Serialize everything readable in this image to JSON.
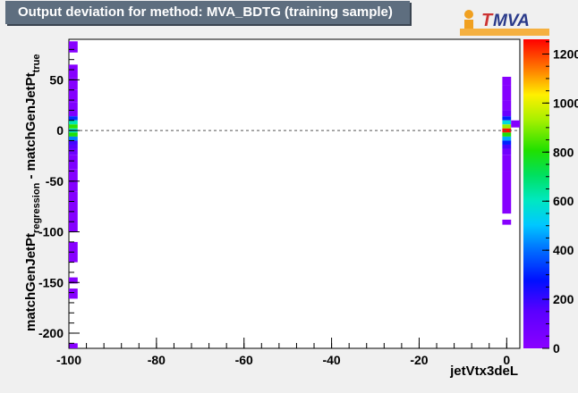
{
  "header": {
    "title": "Output deviation for method: MVA_BDTG (training sample)"
  },
  "logo": {
    "text_t": "T",
    "text_mva": "MVA",
    "accent_color": "#cc3333",
    "brand_color": "#2a3a8a",
    "dot_color": "#f0a020"
  },
  "chart_data": {
    "type": "heatmap",
    "title": "Output deviation for method: MVA_BDTG (training sample)",
    "xlabel": "jetVtx3deL",
    "ylabel_main": "matchGenJetPt",
    "ylabel_sub1": "regression",
    "ylabel_mid": " - matchGenJetPt",
    "ylabel_sub2": "true",
    "xlim": [
      -100,
      3
    ],
    "ylim": [
      -215,
      90
    ],
    "zlim": [
      0,
      1260
    ],
    "x_ticks": [
      -100,
      -80,
      -60,
      -40,
      -20,
      0
    ],
    "y_ticks": [
      50,
      0,
      -50,
      -100,
      -150,
      -200
    ],
    "z_ticks": [
      0,
      200,
      400,
      600,
      800,
      1000,
      1200
    ],
    "reference_line_y": 0,
    "cells": [
      {
        "x0": -100,
        "x1": -98,
        "y0": 77,
        "y1": 88,
        "z": 10
      },
      {
        "x0": -100,
        "x1": -98,
        "y0": 52,
        "y1": 65,
        "z": 12
      },
      {
        "x0": -100,
        "x1": -98,
        "y0": 40,
        "y1": 52,
        "z": 15
      },
      {
        "x0": -100,
        "x1": -98,
        "y0": 28,
        "y1": 40,
        "z": 20
      },
      {
        "x0": -100,
        "x1": -98,
        "y0": 14,
        "y1": 28,
        "z": 35
      },
      {
        "x0": -100,
        "x1": -98,
        "y0": 10,
        "y1": 14,
        "z": 320
      },
      {
        "x0": -100,
        "x1": -98,
        "y0": 6,
        "y1": 10,
        "z": 620
      },
      {
        "x0": -100,
        "x1": -98,
        "y0": 2,
        "y1": 6,
        "z": 820
      },
      {
        "x0": -100,
        "x1": -98,
        "y0": -2,
        "y1": 2,
        "z": 600
      },
      {
        "x0": -100,
        "x1": -98,
        "y0": -6,
        "y1": -2,
        "z": 800
      },
      {
        "x0": -100,
        "x1": -98,
        "y0": -10,
        "y1": -6,
        "z": 420
      },
      {
        "x0": -100,
        "x1": -98,
        "y0": -14,
        "y1": -10,
        "z": 180
      },
      {
        "x0": -100,
        "x1": -98,
        "y0": -18,
        "y1": -14,
        "z": 150
      },
      {
        "x0": -100,
        "x1": -98,
        "y0": -24,
        "y1": -18,
        "z": 90
      },
      {
        "x0": -100,
        "x1": -98,
        "y0": -38,
        "y1": -24,
        "z": 40
      },
      {
        "x0": -100,
        "x1": -98,
        "y0": -60,
        "y1": -38,
        "z": 20
      },
      {
        "x0": -100,
        "x1": -98,
        "y0": -100,
        "y1": -60,
        "z": 15
      },
      {
        "x0": -100,
        "x1": -98,
        "y0": -130,
        "y1": -110,
        "z": 10
      },
      {
        "x0": -100,
        "x1": -98,
        "y0": -151,
        "y1": -145,
        "z": 10
      },
      {
        "x0": -100,
        "x1": -98,
        "y0": -166,
        "y1": -156,
        "z": 10
      },
      {
        "x0": -100,
        "x1": -98,
        "y0": -215,
        "y1": -210,
        "z": 10
      },
      {
        "x0": -1,
        "x1": 1,
        "y0": 45,
        "y1": 53,
        "z": 10
      },
      {
        "x0": -1,
        "x1": 1,
        "y0": 30,
        "y1": 45,
        "z": 15
      },
      {
        "x0": -1,
        "x1": 1,
        "y0": 20,
        "y1": 30,
        "z": 25
      },
      {
        "x0": -1,
        "x1": 1,
        "y0": 14,
        "y1": 20,
        "z": 100
      },
      {
        "x0": -1,
        "x1": 1,
        "y0": 10,
        "y1": 14,
        "z": 300
      },
      {
        "x0": -1,
        "x1": 1,
        "y0": 6,
        "y1": 10,
        "z": 560
      },
      {
        "x0": -1,
        "x1": 1,
        "y0": 2,
        "y1": 6,
        "z": 920
      },
      {
        "x0": -1,
        "x1": 1,
        "y0": -2,
        "y1": 2,
        "z": 1250
      },
      {
        "x0": -1,
        "x1": 1,
        "y0": -6,
        "y1": -2,
        "z": 800
      },
      {
        "x0": -1,
        "x1": 1,
        "y0": -10,
        "y1": -6,
        "z": 470
      },
      {
        "x0": -1,
        "x1": 1,
        "y0": -14,
        "y1": -10,
        "z": 300
      },
      {
        "x0": -1,
        "x1": 1,
        "y0": -18,
        "y1": -14,
        "z": 180
      },
      {
        "x0": -1,
        "x1": 1,
        "y0": -24,
        "y1": -18,
        "z": 80
      },
      {
        "x0": -1,
        "x1": 1,
        "y0": -40,
        "y1": -24,
        "z": 30
      },
      {
        "x0": -1,
        "x1": 1,
        "y0": -82,
        "y1": -40,
        "z": 12
      },
      {
        "x0": -1,
        "x1": 1,
        "y0": -93,
        "y1": -88,
        "z": 10
      },
      {
        "x0": 1,
        "x1": 3,
        "y0": 3,
        "y1": 10,
        "z": 20
      }
    ]
  }
}
